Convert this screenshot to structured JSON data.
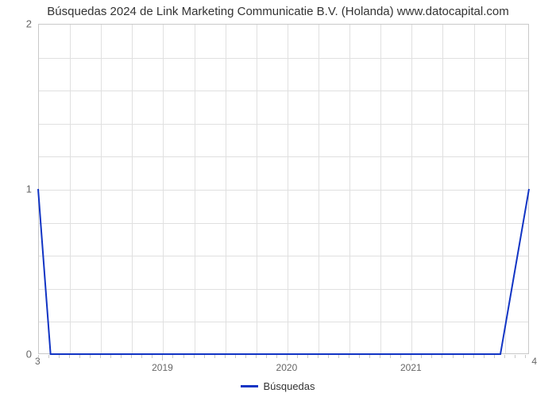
{
  "title": "Búsquedas 2024 de Link Marketing Communicatie B.V. (Holanda) www.datocapital.com",
  "chart": {
    "type": "line",
    "background_color": "#ffffff",
    "grid_color": "#e0e0e0",
    "axis_color": "#c9c9c9",
    "tick_label_color": "#666666",
    "title_fontsize": 15,
    "tick_fontsize": 12,
    "line_color": "#1134c4",
    "line_width": 2,
    "x": {
      "min": 2018.0,
      "max": 2021.95,
      "grid_every_months": 3,
      "major_labels": [
        "2019",
        "2020",
        "2021"
      ],
      "major_positions": [
        2019.0,
        2020.0,
        2021.0
      ],
      "secondary_left": "3",
      "secondary_right": "4"
    },
    "y_left": {
      "min": 0,
      "max": 2,
      "labels": [
        "0",
        "1",
        "2"
      ],
      "positions": [
        0,
        1,
        2
      ],
      "minor_gridlines": 9
    },
    "series": [
      {
        "x": 2018.0,
        "y": 1.0
      },
      {
        "x": 2018.1,
        "y": 0.0
      },
      {
        "x": 2021.72,
        "y": 0.0
      },
      {
        "x": 2021.95,
        "y": 1.0
      }
    ]
  },
  "legend": {
    "label": "Búsquedas",
    "swatch_color": "#1134c4"
  }
}
